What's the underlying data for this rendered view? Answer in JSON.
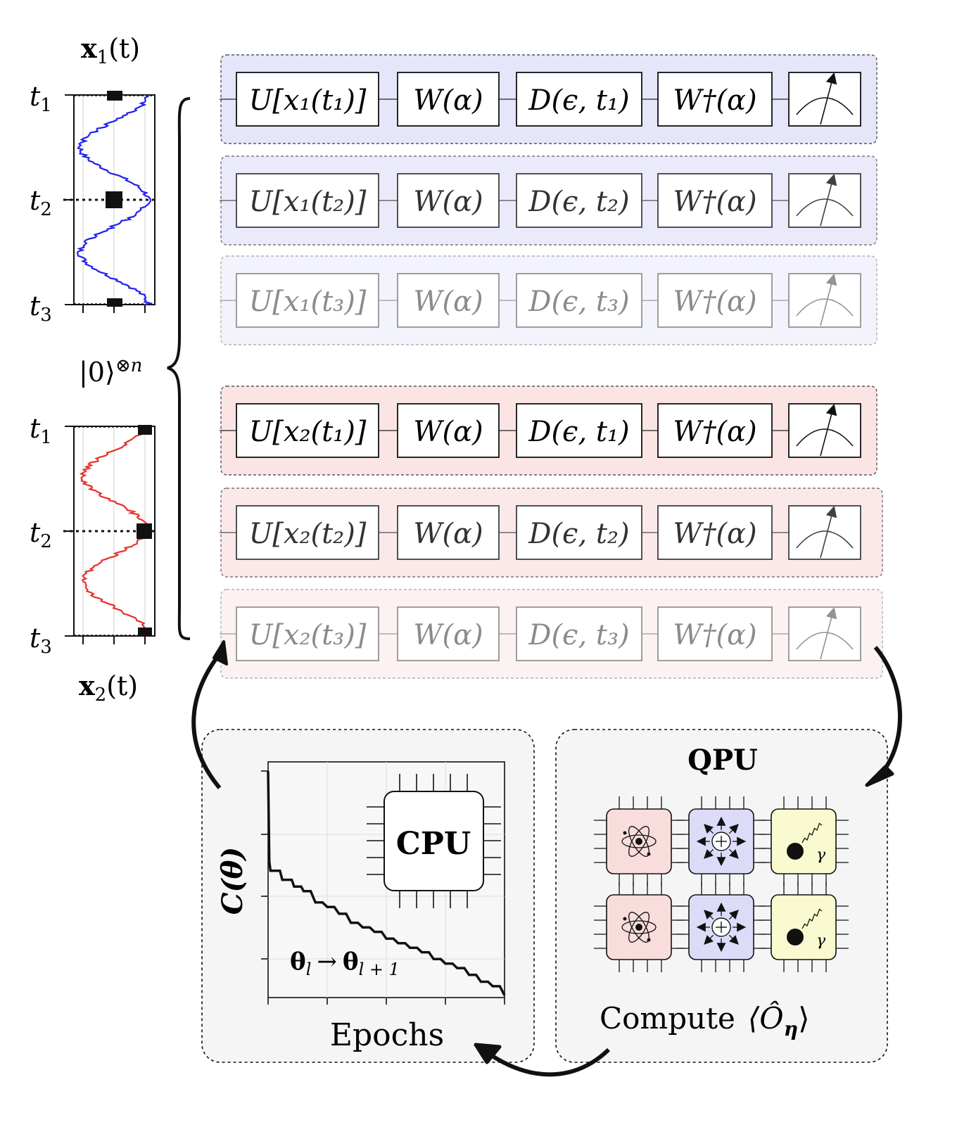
{
  "traj_top": {
    "title_base": "x",
    "title_sub": "1",
    "title_tail": "(t)",
    "ticks": [
      {
        "base": "t",
        "sub": "1"
      },
      {
        "base": "t",
        "sub": "2"
      },
      {
        "base": "t",
        "sub": "3"
      }
    ],
    "color": "#1f1ff0"
  },
  "traj_bottom": {
    "title_base": "x",
    "title_sub": "2",
    "title_tail": "(t)",
    "ticks": [
      {
        "base": "t",
        "sub": "1"
      },
      {
        "base": "t",
        "sub": "2"
      },
      {
        "base": "t",
        "sub": "3"
      }
    ],
    "color": "#e8302a"
  },
  "initial_state": {
    "ket": "|0⟩",
    "sup": "⊗n"
  },
  "circuits": [
    {
      "U": "U[x₁(t₁)]",
      "W": "W(α)",
      "D": "D(ϵ, t₁)",
      "Wd": "W†(α)",
      "shade": "blue",
      "opacity": 1.0
    },
    {
      "U": "U[x₁(t₂)]",
      "W": "W(α)",
      "D": "D(ϵ, t₂)",
      "Wd": "W†(α)",
      "shade": "blue",
      "opacity": 0.8
    },
    {
      "U": "U[x₁(t₃)]",
      "W": "W(α)",
      "D": "D(ϵ, t₃)",
      "Wd": "W†(α)",
      "shade": "blue",
      "opacity": 0.45
    },
    {
      "U": "U[x₂(t₁)]",
      "W": "W(α)",
      "D": "D(ϵ, t₁)",
      "Wd": "W†(α)",
      "shade": "red",
      "opacity": 1.0
    },
    {
      "U": "U[x₂(t₂)]",
      "W": "W(α)",
      "D": "D(ϵ, t₂)",
      "Wd": "W†(α)",
      "shade": "red",
      "opacity": 0.8
    },
    {
      "U": "U[x₂(t₃)]",
      "W": "W(α)",
      "D": "D(ϵ, t₃)",
      "Wd": "W†(α)",
      "shade": "red",
      "opacity": 0.45
    }
  ],
  "colors": {
    "blue_fill": "#e6e6fb",
    "red_fill": "#fbe4e4",
    "panel_fill": "#f5f5f5",
    "atom_fill": "#f9dcdc",
    "ion_fill": "#dcdcf9",
    "photon_fill": "#fafad0"
  },
  "cpu_panel": {
    "ylabel": "C(θ)",
    "xlabel": "Epochs",
    "chip_label": "CPU",
    "update_rule": "θl → θl+1",
    "update_from": "θ",
    "update_from_sub": "l",
    "update_arrow": "→",
    "update_to": "θ",
    "update_to_sub": "l + 1"
  },
  "qpu_panel": {
    "title": "QPU",
    "caption_word": "Compute",
    "caption_math": "⟨Ô",
    "caption_sub": "η",
    "caption_close": "⟩",
    "photon_symbol": "γ"
  },
  "chart_data": {
    "type": "line",
    "xlabel": "Epochs",
    "ylabel": "C(θ)",
    "x": [
      0,
      0.5,
      1,
      5,
      6,
      10,
      11,
      14,
      15,
      18,
      20,
      23,
      25,
      28,
      30,
      33,
      35,
      38,
      40,
      43,
      45,
      48,
      50,
      53,
      55,
      58,
      60,
      63,
      65,
      68,
      70,
      73,
      75,
      78,
      80,
      83,
      85,
      88,
      90,
      93,
      95,
      98,
      100
    ],
    "y": [
      1.0,
      0.6,
      0.56,
      0.56,
      0.52,
      0.52,
      0.49,
      0.49,
      0.47,
      0.47,
      0.42,
      0.42,
      0.4,
      0.4,
      0.37,
      0.37,
      0.33,
      0.33,
      0.31,
      0.31,
      0.29,
      0.29,
      0.26,
      0.26,
      0.24,
      0.24,
      0.22,
      0.22,
      0.2,
      0.2,
      0.17,
      0.17,
      0.15,
      0.15,
      0.13,
      0.13,
      0.1,
      0.1,
      0.07,
      0.07,
      0.05,
      0.05,
      0.01
    ],
    "xlim": [
      0,
      100
    ],
    "ylim": [
      0,
      1.0
    ],
    "grid": true
  }
}
